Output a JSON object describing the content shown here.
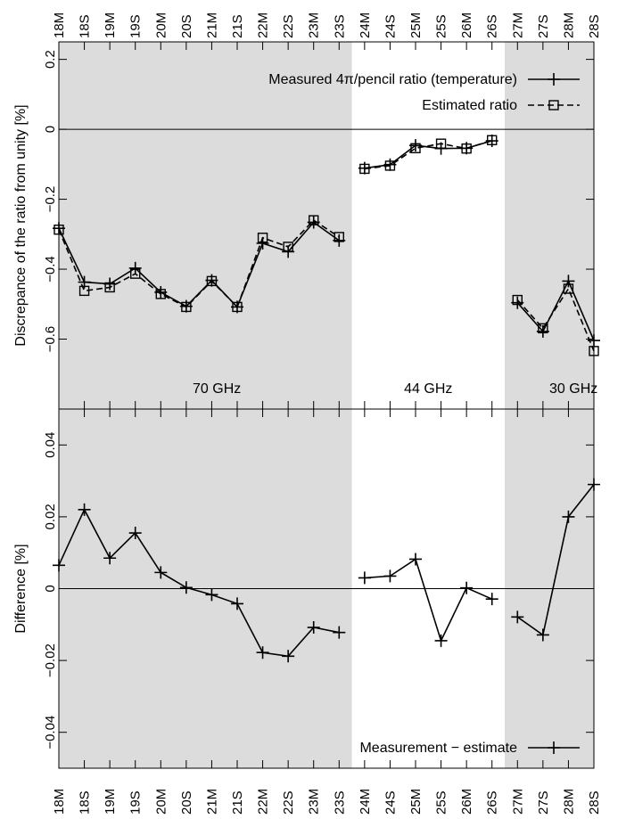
{
  "chart_data": [
    {
      "type": "line",
      "ylabel": "Discrepance of the ratio from unity [%]",
      "ylim": [
        -0.8,
        0.25
      ],
      "yticks": [
        {
          "v": 0.2,
          "label": "0.2"
        },
        {
          "v": 0.0,
          "label": "0"
        },
        {
          "v": -0.2,
          "label": "−0.2"
        },
        {
          "v": -0.4,
          "label": "−0.4"
        },
        {
          "v": -0.6,
          "label": "−0.6"
        }
      ],
      "categories": [
        "18M",
        "18S",
        "19M",
        "19S",
        "20M",
        "20S",
        "21M",
        "21S",
        "22M",
        "22S",
        "23M",
        "23S",
        "24M",
        "24S",
        "25M",
        "25S",
        "26M",
        "26S",
        "27M",
        "27S",
        "28M",
        "28S"
      ],
      "bands": [
        {
          "label": "70 GHz",
          "from": 0,
          "to": 11,
          "shaded": true
        },
        {
          "label": "44 GHz",
          "from": 12,
          "to": 17,
          "shaded": false
        },
        {
          "label": "30 GHz",
          "from": 18,
          "to": 21,
          "shaded": true
        }
      ],
      "series": [
        {
          "name": "Measured 4π/pencil ratio (temperature)",
          "marker": "plus",
          "style": "solid",
          "values": [
            -0.283,
            -0.437,
            -0.442,
            -0.397,
            -0.466,
            -0.506,
            -0.432,
            -0.508,
            -0.326,
            -0.35,
            -0.266,
            -0.318,
            -0.111,
            -0.101,
            -0.046,
            -0.055,
            -0.054,
            -0.033,
            -0.496,
            -0.578,
            -0.434,
            -0.604
          ]
        },
        {
          "name": "Estimated ratio",
          "marker": "square",
          "style": "dashed",
          "values": [
            -0.287,
            -0.462,
            -0.452,
            -0.413,
            -0.471,
            -0.508,
            -0.434,
            -0.508,
            -0.31,
            -0.336,
            -0.26,
            -0.308,
            -0.113,
            -0.104,
            -0.054,
            -0.041,
            -0.055,
            -0.031,
            -0.488,
            -0.569,
            -0.456,
            -0.634
          ]
        }
      ]
    },
    {
      "type": "line",
      "ylabel": "Difference [%]",
      "ylim": [
        -0.05,
        0.05
      ],
      "yticks": [
        {
          "v": 0.04,
          "label": "0.04"
        },
        {
          "v": 0.02,
          "label": "0.02"
        },
        {
          "v": 0.0,
          "label": "0"
        },
        {
          "v": -0.02,
          "label": "−0.02"
        },
        {
          "v": -0.04,
          "label": "−0.04"
        }
      ],
      "categories": [
        "18M",
        "18S",
        "19M",
        "19S",
        "20M",
        "20S",
        "21M",
        "21S",
        "22M",
        "22S",
        "23M",
        "23S",
        "24M",
        "24S",
        "25M",
        "25S",
        "26M",
        "26S",
        "27M",
        "27S",
        "28M",
        "28S"
      ],
      "series": [
        {
          "name": "Measurement − estimate",
          "marker": "plus",
          "style": "solid",
          "values": [
            0.0065,
            0.022,
            0.0085,
            0.0155,
            0.0045,
            0.0003,
            -0.0017,
            -0.0042,
            -0.0178,
            -0.0188,
            -0.0108,
            -0.0122,
            0.003,
            0.0035,
            0.0082,
            -0.0145,
            0.0002,
            -0.0029,
            -0.0079,
            -0.0129,
            0.02,
            0.029
          ]
        }
      ]
    }
  ],
  "colors": {
    "band_shade": "#dcdcdc",
    "line": "#000000"
  }
}
